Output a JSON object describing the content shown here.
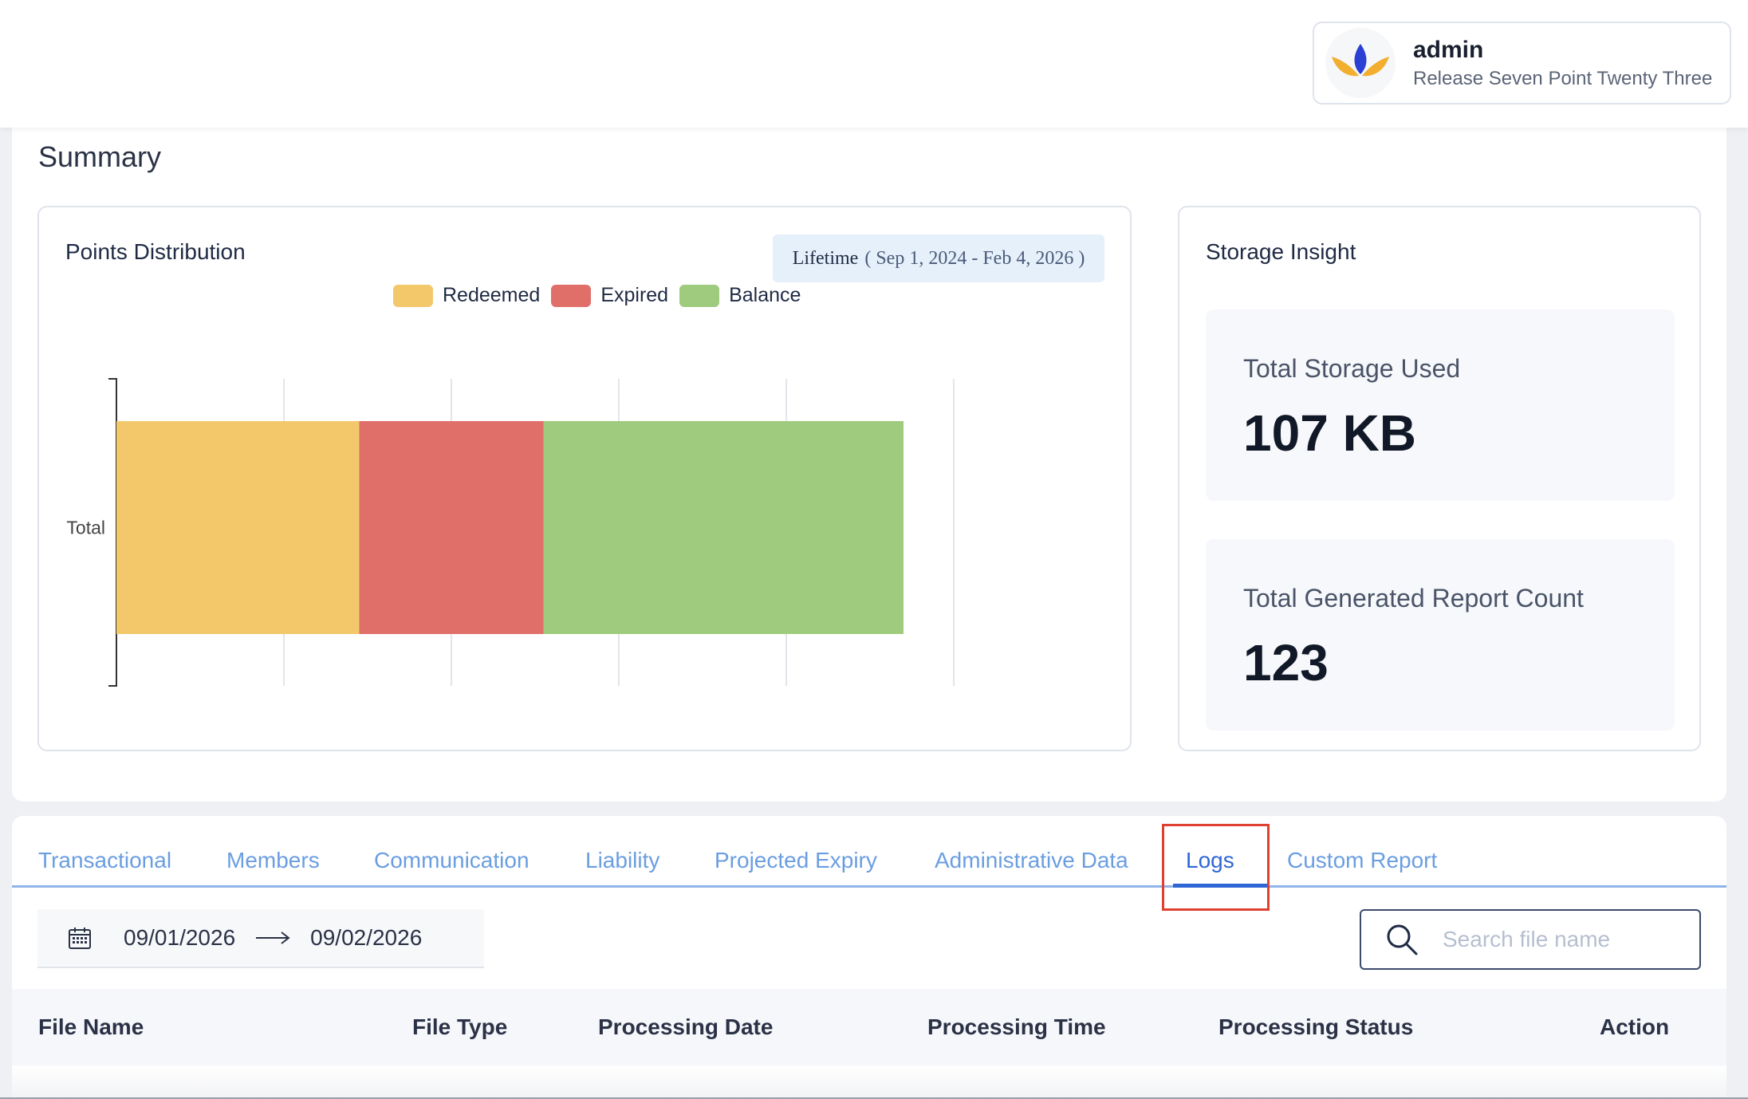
{
  "header": {
    "user_name": "admin",
    "release": "Release Seven Point Twenty Three"
  },
  "summary": {
    "title": "Summary",
    "points_card": {
      "title": "Points Distribution",
      "lifetime_label": "Lifetime",
      "lifetime_range": "( Sep 1, 2024 - Feb 4, 2026 )"
    },
    "storage_card": {
      "title": "Storage Insight",
      "stats": [
        {
          "label": "Total Storage Used",
          "value": "107 KB"
        },
        {
          "label": "Total Generated Report Count",
          "value": "123"
        }
      ]
    }
  },
  "chart_data": {
    "type": "bar",
    "orientation": "horizontal",
    "stacked": true,
    "categories": [
      "Total"
    ],
    "series": [
      {
        "name": "Redeemed",
        "values": [
          1.45
        ],
        "color": "#f2c86b"
      },
      {
        "name": "Expired",
        "values": [
          1.1
        ],
        "color": "#e06f6a"
      },
      {
        "name": "Balance",
        "values": [
          2.15
        ],
        "color": "#9fcb7e"
      }
    ],
    "xlim": [
      0,
      5
    ],
    "grid": true,
    "legend_position": "top-center"
  },
  "reports": {
    "tabs": [
      {
        "label": "Transactional",
        "active": false
      },
      {
        "label": "Members",
        "active": false
      },
      {
        "label": "Communication",
        "active": false
      },
      {
        "label": "Liability",
        "active": false
      },
      {
        "label": "Projected Expiry",
        "active": false
      },
      {
        "label": "Administrative Data",
        "active": false
      },
      {
        "label": "Logs",
        "active": true
      },
      {
        "label": "Custom Report",
        "active": false
      }
    ],
    "date_from": "09/01/2026",
    "date_to": "09/02/2026",
    "search_placeholder": "Search file name",
    "columns": [
      "File Name",
      "File Type",
      "Processing Date",
      "Processing Time",
      "Processing Status",
      "Action"
    ]
  },
  "icons": {
    "logo": "lotus-logo-icon",
    "calendar": "calendar-icon",
    "arrow": "arrow-right-icon",
    "search": "search-icon"
  },
  "colors": {
    "active_tab": "#2f66d6",
    "tab": "#6a9ee0",
    "highlight": "#e0402f"
  }
}
